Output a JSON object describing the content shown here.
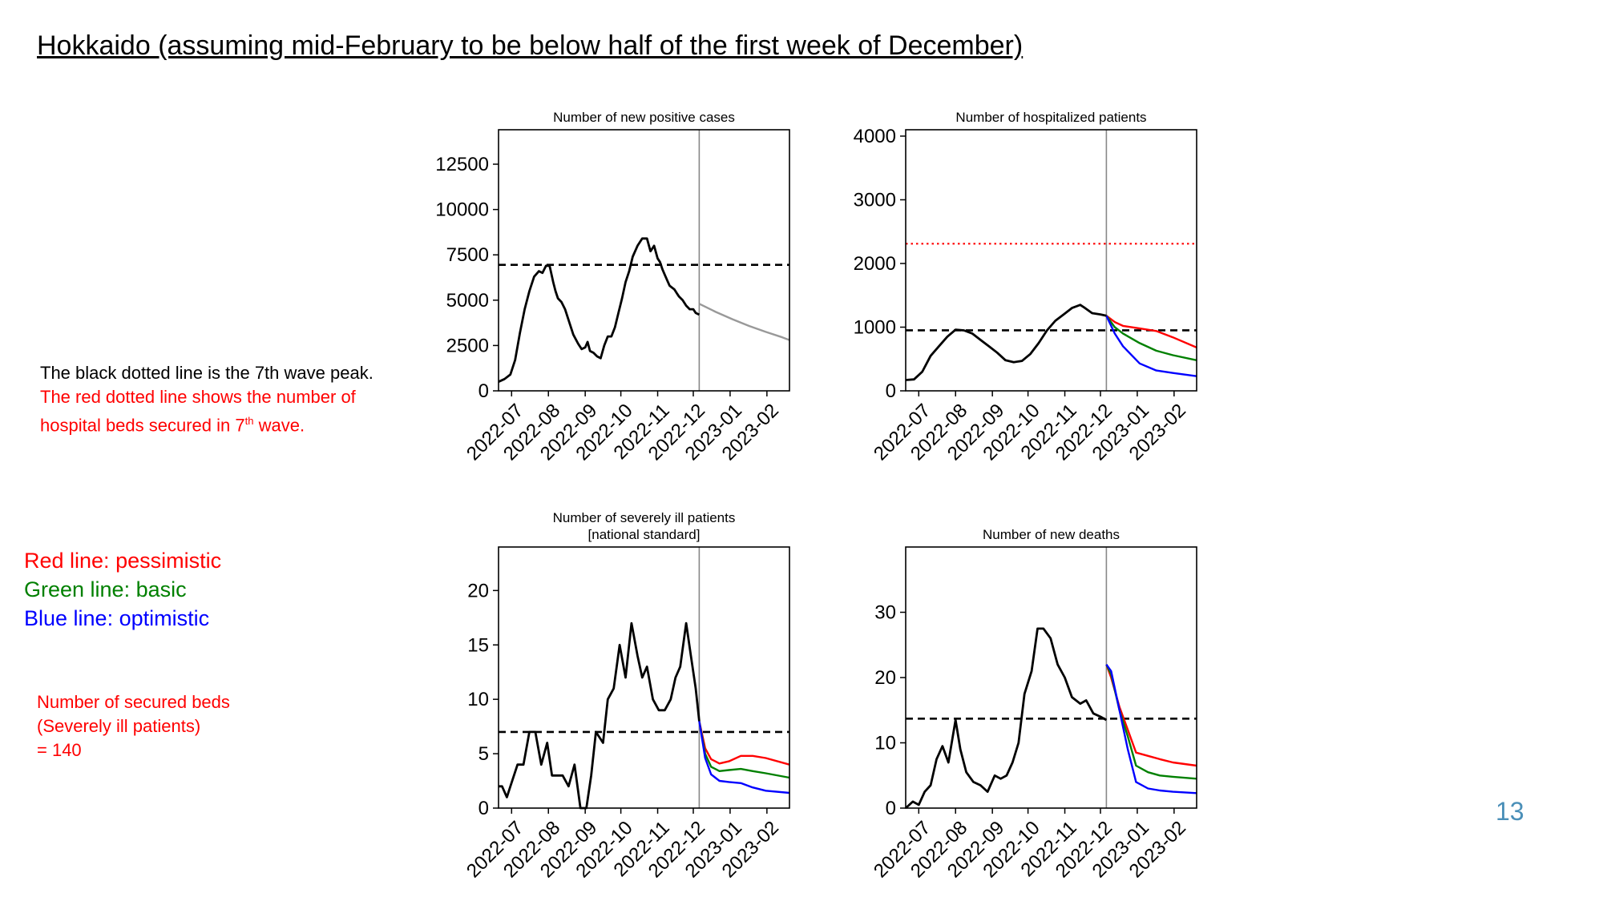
{
  "title": "Hokkaido (assuming mid-February to be below half of the first week of December)",
  "notes": {
    "black_line": "The black dotted line is the 7th wave peak.",
    "red_line_pre": "The red dotted line shows the number of",
    "red_line_post_a": "hospital beds secured in 7",
    "red_line_sup": "th",
    "red_line_post_b": " wave.",
    "scenario_red": "Red line: pessimistic",
    "scenario_green": "Green line: basic",
    "scenario_blue": "Blue line: optimistic",
    "beds_1": "Number of secured beds",
    "beds_2": "(Severely ill patients)",
    "beds_3": "= 140"
  },
  "page_number": "13",
  "colors": {
    "pessimistic": "#ff0000",
    "basic": "#008000",
    "optimistic": "#0000ff",
    "actual": "#000000",
    "projection": "#999999",
    "divider": "#888888",
    "page_number": "#4a8fb8"
  },
  "chart_data": [
    {
      "type": "line",
      "title": [
        "Number of new positive cases"
      ],
      "x_ticks": [
        "2022-07",
        "2022-08",
        "2022-09",
        "2022-10",
        "2022-11",
        "2022-12",
        "2023-01",
        "2023-02"
      ],
      "xlim": [
        "2022-06-20",
        "2023-02-20"
      ],
      "ylim": [
        0,
        14400
      ],
      "y_ticks": [
        0,
        2500,
        5000,
        7500,
        10000,
        12500
      ],
      "divider_date": "2022-12-06",
      "hlines": [
        {
          "value": 6950,
          "color": "#000000",
          "style": "dashed"
        }
      ],
      "series": [
        {
          "role": "actual",
          "x": [
            "2022-06-20",
            "2022-06-25",
            "2022-06-30",
            "2022-07-04",
            "2022-07-08",
            "2022-07-12",
            "2022-07-16",
            "2022-07-20",
            "2022-07-24",
            "2022-07-27",
            "2022-07-30",
            "2022-08-02",
            "2022-08-05",
            "2022-08-07",
            "2022-08-09",
            "2022-08-12",
            "2022-08-15",
            "2022-08-18",
            "2022-08-22",
            "2022-08-26",
            "2022-08-29",
            "2022-09-01",
            "2022-09-03",
            "2022-09-05",
            "2022-09-08",
            "2022-09-11",
            "2022-09-14",
            "2022-09-17",
            "2022-09-20",
            "2022-09-23",
            "2022-09-26",
            "2022-09-29",
            "2022-10-02",
            "2022-10-05",
            "2022-10-08",
            "2022-10-11",
            "2022-10-15",
            "2022-10-19",
            "2022-10-23",
            "2022-10-26",
            "2022-10-29",
            "2022-11-01",
            "2022-11-03",
            "2022-11-05",
            "2022-11-07",
            "2022-11-09",
            "2022-11-11",
            "2022-11-13",
            "2022-11-15",
            "2022-11-17",
            "2022-11-19",
            "2022-11-22",
            "2022-11-25",
            "2022-11-28",
            "2022-12-01",
            "2022-12-03",
            "2022-12-06"
          ],
          "y": [
            500,
            650,
            900,
            1700,
            3200,
            4500,
            5500,
            6300,
            6600,
            6500,
            6900,
            6900,
            6000,
            5500,
            5100,
            4900,
            4500,
            3900,
            3100,
            2600,
            2300,
            2400,
            2700,
            2200,
            2100,
            1900,
            1800,
            2500,
            3000,
            3000,
            3500,
            4300,
            5100,
            6000,
            6600,
            7400,
            8000,
            8400,
            8400,
            7700,
            8000,
            7300,
            7100,
            6700,
            6400,
            6100,
            5800,
            5700,
            5600,
            5400,
            5200,
            5000,
            4700,
            4500,
            4500,
            4300,
            4200
          ]
        },
        {
          "role": "projection",
          "x": [
            "2022-12-06",
            "2022-12-20",
            "2023-01-03",
            "2023-01-17",
            "2023-01-31",
            "2023-02-14",
            "2023-02-20"
          ],
          "y": [
            4800,
            4350,
            3950,
            3580,
            3250,
            2950,
            2800
          ]
        }
      ]
    },
    {
      "type": "line",
      "title": [
        "Number of hospitalized patients"
      ],
      "x_ticks": [
        "2022-07",
        "2022-08",
        "2022-09",
        "2022-10",
        "2022-11",
        "2022-12",
        "2023-01",
        "2023-02"
      ],
      "xlim": [
        "2022-06-20",
        "2023-02-20"
      ],
      "ylim": [
        0,
        4100
      ],
      "y_ticks": [
        0,
        1000,
        2000,
        3000,
        4000
      ],
      "divider_date": "2022-12-06",
      "hlines": [
        {
          "value": 950,
          "color": "#000000",
          "style": "dashed"
        },
        {
          "value": 2310,
          "color": "#ff0000",
          "style": "dotted"
        }
      ],
      "series": [
        {
          "role": "actual",
          "x": [
            "2022-06-20",
            "2022-06-27",
            "2022-07-04",
            "2022-07-11",
            "2022-07-18",
            "2022-07-25",
            "2022-08-01",
            "2022-08-08",
            "2022-08-15",
            "2022-08-22",
            "2022-08-29",
            "2022-09-05",
            "2022-09-12",
            "2022-09-19",
            "2022-09-26",
            "2022-10-03",
            "2022-10-10",
            "2022-10-17",
            "2022-10-24",
            "2022-10-31",
            "2022-11-07",
            "2022-11-14",
            "2022-11-18",
            "2022-11-24",
            "2022-12-01",
            "2022-12-06"
          ],
          "y": [
            170,
            180,
            300,
            550,
            700,
            850,
            960,
            950,
            900,
            800,
            700,
            600,
            480,
            450,
            470,
            580,
            750,
            950,
            1100,
            1200,
            1300,
            1350,
            1300,
            1220,
            1200,
            1180
          ]
        },
        {
          "role": "pessimistic",
          "x": [
            "2022-12-06",
            "2022-12-13",
            "2022-12-20",
            "2023-01-03",
            "2023-01-17",
            "2023-01-31",
            "2023-02-20"
          ],
          "y": [
            1180,
            1080,
            1020,
            980,
            940,
            840,
            680
          ]
        },
        {
          "role": "basic",
          "x": [
            "2022-12-06",
            "2022-12-13",
            "2022-12-20",
            "2023-01-03",
            "2023-01-17",
            "2023-01-31",
            "2023-02-20"
          ],
          "y": [
            1180,
            1000,
            900,
            750,
            630,
            560,
            480
          ]
        },
        {
          "role": "optimistic",
          "x": [
            "2022-12-06",
            "2022-12-13",
            "2022-12-20",
            "2023-01-03",
            "2023-01-17",
            "2023-01-31",
            "2023-02-20"
          ],
          "y": [
            1180,
            900,
            700,
            430,
            320,
            280,
            230
          ]
        }
      ]
    },
    {
      "type": "line",
      "title": [
        "Number of severely ill patients",
        "[national standard]"
      ],
      "x_ticks": [
        "2022-07",
        "2022-08",
        "2022-09",
        "2022-10",
        "2022-11",
        "2022-12",
        "2023-01",
        "2023-02"
      ],
      "xlim": [
        "2022-06-20",
        "2023-02-20"
      ],
      "ylim": [
        0,
        24
      ],
      "y_ticks": [
        0,
        5,
        10,
        15,
        20
      ],
      "divider_date": "2022-12-06",
      "hlines": [
        {
          "value": 7,
          "color": "#000000",
          "style": "dashed"
        }
      ],
      "series": [
        {
          "role": "actual",
          "x": [
            "2022-06-20",
            "2022-06-23",
            "2022-06-27",
            "2022-06-30",
            "2022-07-06",
            "2022-07-11",
            "2022-07-16",
            "2022-07-21",
            "2022-07-26",
            "2022-07-31",
            "2022-08-04",
            "2022-08-09",
            "2022-08-13",
            "2022-08-18",
            "2022-08-23",
            "2022-08-28",
            "2022-09-02",
            "2022-09-06",
            "2022-09-10",
            "2022-09-16",
            "2022-09-20",
            "2022-09-25",
            "2022-09-30",
            "2022-10-05",
            "2022-10-10",
            "2022-10-15",
            "2022-10-19",
            "2022-10-23",
            "2022-10-28",
            "2022-11-02",
            "2022-11-07",
            "2022-11-12",
            "2022-11-16",
            "2022-11-20",
            "2022-11-25",
            "2022-11-29",
            "2022-12-03",
            "2022-12-06"
          ],
          "y": [
            2,
            2,
            1,
            2,
            4,
            4,
            7,
            7,
            4,
            6,
            3,
            3,
            3,
            2,
            4,
            0,
            0,
            3,
            7,
            6,
            10,
            11,
            15,
            12,
            17,
            14,
            12,
            13,
            10,
            9,
            9,
            10,
            12,
            13,
            17,
            14,
            11,
            8
          ]
        },
        {
          "role": "pessimistic",
          "x": [
            "2022-12-06",
            "2022-12-11",
            "2022-12-16",
            "2022-12-23",
            "2022-12-31",
            "2023-01-10",
            "2023-01-20",
            "2023-01-31",
            "2023-02-20"
          ],
          "y": [
            8,
            5.5,
            4.5,
            4.1,
            4.3,
            4.8,
            4.8,
            4.6,
            4.0
          ]
        },
        {
          "role": "basic",
          "x": [
            "2022-12-06",
            "2022-12-11",
            "2022-12-16",
            "2022-12-23",
            "2022-12-31",
            "2023-01-10",
            "2023-01-20",
            "2023-01-31",
            "2023-02-20"
          ],
          "y": [
            8,
            5,
            3.8,
            3.4,
            3.5,
            3.6,
            3.4,
            3.2,
            2.8
          ]
        },
        {
          "role": "optimistic",
          "x": [
            "2022-12-06",
            "2022-12-11",
            "2022-12-16",
            "2022-12-23",
            "2022-12-31",
            "2023-01-10",
            "2023-01-20",
            "2023-01-31",
            "2023-02-20"
          ],
          "y": [
            8,
            4.6,
            3.1,
            2.5,
            2.4,
            2.3,
            1.9,
            1.6,
            1.4
          ]
        }
      ]
    },
    {
      "type": "line",
      "title": [
        "Number of new deaths"
      ],
      "x_ticks": [
        "2022-07",
        "2022-08",
        "2022-09",
        "2022-10",
        "2022-11",
        "2022-12",
        "2023-01",
        "2023-02"
      ],
      "xlim": [
        "2022-06-20",
        "2023-02-20"
      ],
      "ylim": [
        0,
        40
      ],
      "y_ticks": [
        0,
        10,
        20,
        30
      ],
      "divider_date": "2022-12-06",
      "hlines": [
        {
          "value": 13.7,
          "color": "#000000",
          "style": "dashed"
        }
      ],
      "series": [
        {
          "role": "actual",
          "x": [
            "2022-06-20",
            "2022-06-26",
            "2022-07-01",
            "2022-07-06",
            "2022-07-11",
            "2022-07-16",
            "2022-07-21",
            "2022-07-26",
            "2022-08-01",
            "2022-08-05",
            "2022-08-10",
            "2022-08-16",
            "2022-08-22",
            "2022-08-28",
            "2022-09-03",
            "2022-09-08",
            "2022-09-13",
            "2022-09-18",
            "2022-09-23",
            "2022-09-28",
            "2022-10-04",
            "2022-10-09",
            "2022-10-14",
            "2022-10-20",
            "2022-10-26",
            "2022-11-01",
            "2022-11-07",
            "2022-11-14",
            "2022-11-19",
            "2022-11-25",
            "2022-12-01",
            "2022-12-06"
          ],
          "y": [
            0,
            1,
            0.5,
            2.5,
            3.5,
            7.5,
            9.5,
            7,
            13.5,
            9,
            5.5,
            4,
            3.5,
            2.5,
            5,
            4.5,
            5,
            7,
            10,
            17.5,
            21,
            27.5,
            27.5,
            26,
            22,
            20,
            17,
            16,
            16.5,
            14.5,
            14,
            13.5
          ]
        },
        {
          "role": "pessimistic",
          "x": [
            "2022-12-06",
            "2022-12-10",
            "2022-12-17",
            "2022-12-24",
            "2022-12-31",
            "2023-01-10",
            "2023-01-20",
            "2023-01-31",
            "2023-02-20"
          ],
          "y": [
            22,
            20,
            15.5,
            12,
            8.5,
            8,
            7.5,
            7,
            6.5
          ]
        },
        {
          "role": "basic",
          "x": [
            "2022-12-06",
            "2022-12-10",
            "2022-12-17",
            "2022-12-24",
            "2022-12-31",
            "2023-01-10",
            "2023-01-20",
            "2023-01-31",
            "2023-02-20"
          ],
          "y": [
            22,
            20.5,
            15,
            11,
            6.5,
            5.5,
            5,
            4.8,
            4.5
          ]
        },
        {
          "role": "optimistic",
          "x": [
            "2022-12-06",
            "2022-12-10",
            "2022-12-17",
            "2022-12-24",
            "2022-12-31",
            "2023-01-10",
            "2023-01-20",
            "2023-01-31",
            "2023-02-20"
          ],
          "y": [
            22,
            21,
            15,
            9,
            4,
            3,
            2.7,
            2.5,
            2.3
          ]
        }
      ]
    }
  ]
}
